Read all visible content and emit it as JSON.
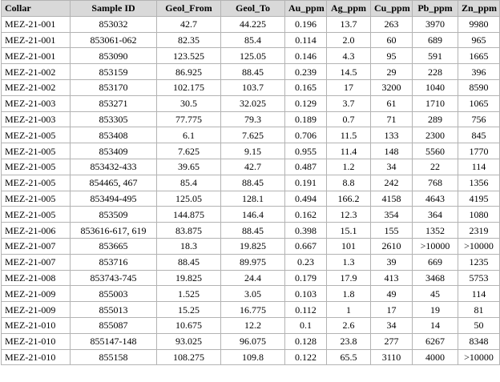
{
  "table": {
    "headers": [
      "Collar",
      "Sample ID",
      "Geol_From",
      "Geol_To",
      "Au_ppm",
      "Ag_ppm",
      "Cu_ppm",
      "Pb_ppm",
      "Zn_ppm"
    ],
    "rows": [
      [
        "MEZ-21-001",
        "853032",
        "42.7",
        "44.225",
        "0.196",
        "13.7",
        "263",
        "3970",
        "9980"
      ],
      [
        "MEZ-21-001",
        "853061-062",
        "82.35",
        "85.4",
        "0.114",
        "2.0",
        "60",
        "689",
        "965"
      ],
      [
        "MEZ-21-001",
        "853090",
        "123.525",
        "125.05",
        "0.146",
        "4.3",
        "95",
        "591",
        "1665"
      ],
      [
        "MEZ-21-002",
        "853159",
        "86.925",
        "88.45",
        "0.239",
        "14.5",
        "29",
        "228",
        "396"
      ],
      [
        "MEZ-21-002",
        "853170",
        "102.175",
        "103.7",
        "0.165",
        "17",
        "3200",
        "1040",
        "8590"
      ],
      [
        "MEZ-21-003",
        "853271",
        "30.5",
        "32.025",
        "0.129",
        "3.7",
        "61",
        "1710",
        "1065"
      ],
      [
        "MEZ-21-003",
        "853305",
        "77.775",
        "79.3",
        "0.189",
        "0.7",
        "71",
        "289",
        "756"
      ],
      [
        "MEZ-21-005",
        "853408",
        "6.1",
        "7.625",
        "0.706",
        "11.5",
        "133",
        "2300",
        "845"
      ],
      [
        "MEZ-21-005",
        "853409",
        "7.625",
        "9.15",
        "0.955",
        "11.4",
        "148",
        "5560",
        "1770"
      ],
      [
        "MEZ-21-005",
        "853432-433",
        "39.65",
        "42.7",
        "0.487",
        "1.2",
        "34",
        "22",
        "114"
      ],
      [
        "MEZ-21-005",
        "854465, 467",
        "85.4",
        "88.45",
        "0.191",
        "8.8",
        "242",
        "768",
        "1356"
      ],
      [
        "MEZ-21-005",
        "853494-495",
        "125.05",
        "128.1",
        "0.494",
        "166.2",
        "4158",
        "4643",
        "4195"
      ],
      [
        "MEZ-21-005",
        "853509",
        "144.875",
        "146.4",
        "0.162",
        "12.3",
        "354",
        "364",
        "1080"
      ],
      [
        "MEZ-21-006",
        "853616-617, 619",
        "83.875",
        "88.45",
        "0.398",
        "15.1",
        "155",
        "1352",
        "2319"
      ],
      [
        "MEZ-21-007",
        "853665",
        "18.3",
        "19.825",
        "0.667",
        "101",
        "2610",
        ">10000",
        ">10000"
      ],
      [
        "MEZ-21-007",
        "853716",
        "88.45",
        "89.975",
        "0.23",
        "1.3",
        "39",
        "669",
        "1235"
      ],
      [
        "MEZ-21-008",
        "853743-745",
        "19.825",
        "24.4",
        "0.179",
        "17.9",
        "413",
        "3468",
        "5753"
      ],
      [
        "MEZ-21-009",
        "855003",
        "1.525",
        "3.05",
        "0.103",
        "1.8",
        "49",
        "45",
        "114"
      ],
      [
        "MEZ-21-009",
        "855013",
        "15.25",
        "16.775",
        "0.112",
        "1",
        "17",
        "19",
        "81"
      ],
      [
        "MEZ-21-010",
        "855087",
        "10.675",
        "12.2",
        "0.1",
        "2.6",
        "34",
        "14",
        "50"
      ],
      [
        "MEZ-21-010",
        "855147-148",
        "93.025",
        "96.075",
        "0.128",
        "23.8",
        "277",
        "6267",
        "8348"
      ],
      [
        "MEZ-21-010",
        "855158",
        "108.275",
        "109.8",
        "0.122",
        "65.5",
        "3110",
        "4000",
        ">10000"
      ]
    ]
  }
}
